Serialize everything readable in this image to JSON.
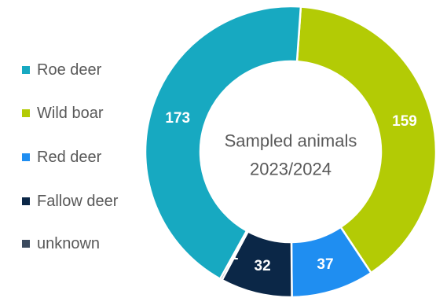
{
  "chart_data": {
    "type": "pie",
    "title": "",
    "center_text": [
      "Sampled animals",
      "2023/2024"
    ],
    "categories": [
      "Roe deer",
      "Wild boar",
      "Red deer",
      "Fallow deer",
      "unknown"
    ],
    "values": [
      173,
      159,
      37,
      32,
      1
    ],
    "data_labels": [
      "173",
      "159",
      "37",
      "32",
      "1"
    ],
    "colors": [
      "#17a9c1",
      "#b3cb05",
      "#1f8ef1",
      "#0b2747",
      "#3b4a5e"
    ],
    "legend_position": "left",
    "donut": true,
    "slice_order": [
      "Wild boar",
      "Red deer",
      "Fallow deer",
      "unknown",
      "Roe deer"
    ]
  }
}
